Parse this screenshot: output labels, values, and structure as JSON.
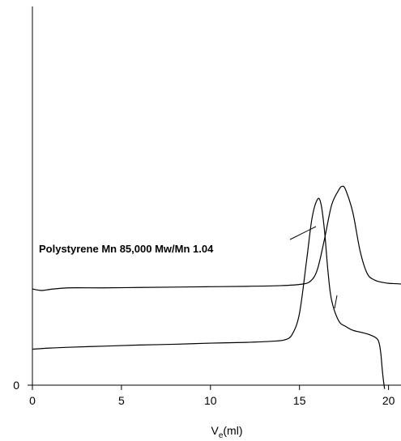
{
  "chart_data": {
    "type": "line",
    "title": "",
    "xlabel": {
      "main": "V",
      "sub": "e",
      "rest": "(ml)"
    },
    "ylabel": "",
    "xlim": [
      0,
      20.7
    ],
    "ylim": [
      0,
      100
    ],
    "x_ticks": [
      0,
      5,
      10,
      15,
      20
    ],
    "y_ticks": [
      0
    ],
    "grid": false,
    "legend": "none",
    "annotation": "Polystyrene Mn 85,000 Mw/Mn 1.04",
    "series": [
      {
        "x": [
          0,
          0.5,
          1,
          2,
          4,
          6,
          8,
          10,
          12,
          14,
          15,
          15.6,
          16.0,
          16.4,
          16.8,
          17.2,
          17.4,
          17.6,
          18.0,
          18.4,
          18.8,
          19.2,
          19.6,
          20.0,
          20.4,
          20.7
        ],
        "y": [
          25.4,
          25.0,
          25.3,
          25.7,
          25.7,
          25.8,
          25.9,
          26.0,
          26.1,
          26.3,
          26.6,
          27.4,
          30.5,
          38.5,
          47.5,
          51.5,
          52.5,
          51.5,
          45.5,
          35.5,
          29.5,
          27.8,
          27.2,
          26.9,
          26.8,
          26.7
        ]
      },
      {
        "x": [
          0,
          1,
          2,
          4,
          6,
          8,
          10,
          12,
          13.5,
          14.2,
          14.6,
          15.0,
          15.4,
          15.7,
          16.0,
          16.2,
          16.4,
          16.6,
          16.8,
          17.2,
          17.6,
          18.0,
          18.6,
          19.0,
          19.4,
          19.55,
          19.65,
          19.72,
          19.78
        ],
        "y": [
          9.5,
          9.8,
          10.0,
          10.3,
          10.6,
          10.8,
          11.1,
          11.3,
          11.6,
          12.0,
          13.5,
          19.0,
          33.0,
          44.0,
          49.0,
          48.0,
          41.0,
          30.0,
          22.5,
          17.0,
          15.5,
          14.5,
          13.8,
          13.2,
          12.0,
          9.0,
          4.0,
          1.0,
          -1.0
        ]
      }
    ]
  }
}
